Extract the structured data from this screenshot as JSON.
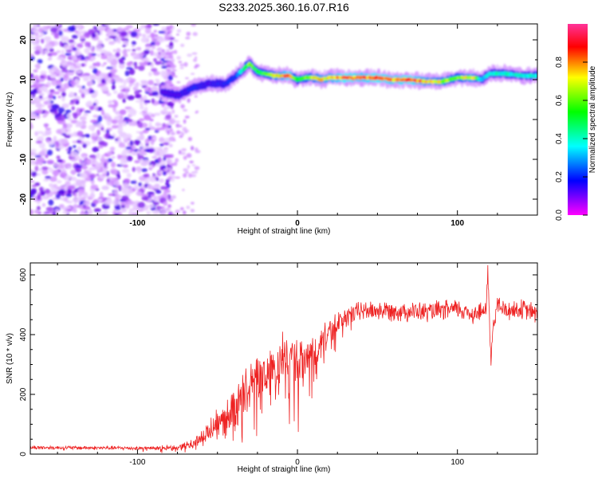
{
  "title": "S233.2025.360.16.07.R16",
  "chart_data": [
    {
      "type": "heatmap",
      "xlabel": "Height of straight line (km)",
      "ylabel": "Frequency (Hz)",
      "xlim": [
        -167,
        150
      ],
      "ylim": [
        -24,
        24
      ],
      "x_ticks": [
        -100,
        0,
        100
      ],
      "x_tick_labels": [
        "-100",
        "0",
        "100"
      ],
      "y_ticks": [
        -20,
        -10,
        0,
        10,
        20
      ],
      "y_tick_labels": [
        "-20",
        "-10",
        "0",
        "10",
        "20"
      ],
      "colorbar": {
        "label": "Normalized spectral amplitude",
        "range": [
          0,
          1
        ],
        "ticks": [
          0.0,
          0.2,
          0.4,
          0.6,
          0.8
        ],
        "tick_labels": [
          "0.0",
          "0.2",
          "0.4",
          "0.6",
          "0.8"
        ],
        "colormap": [
          "#ffffff",
          "#ff00ff",
          "#0000ff",
          "#00ffff",
          "#00ff00",
          "#ffff00",
          "#ff0000"
        ]
      },
      "noise_region_x": [
        -167,
        -82
      ],
      "ridge": {
        "x": [
          -85,
          -75,
          -65,
          -55,
          -45,
          -38,
          -33,
          -30,
          -25,
          -20,
          -15,
          -10,
          -5,
          0,
          5,
          10,
          15,
          20,
          30,
          40,
          50,
          60,
          70,
          80,
          90,
          100,
          110,
          115,
          120,
          130,
          140,
          150
        ],
        "freq": [
          7,
          6,
          8,
          9,
          9,
          11,
          13,
          14,
          12,
          11.5,
          11,
          11,
          11,
          10,
          10.5,
          10.5,
          10,
          10.5,
          10.5,
          10.5,
          10.5,
          10,
          10,
          9.5,
          9.5,
          10.5,
          10.5,
          10,
          11.5,
          11.5,
          11,
          11
        ],
        "amplitude": [
          0.3,
          0.3,
          0.35,
          0.3,
          0.35,
          0.4,
          0.6,
          0.7,
          0.6,
          0.65,
          0.75,
          0.8,
          0.9,
          0.6,
          0.7,
          0.75,
          0.8,
          0.8,
          0.9,
          0.85,
          0.9,
          0.85,
          0.9,
          0.8,
          0.75,
          0.7,
          0.8,
          0.5,
          0.55,
          0.55,
          0.55,
          0.55
        ]
      }
    },
    {
      "type": "line",
      "xlabel": "Height of straight line (km)",
      "ylabel": "SNR (10 * v/v)",
      "xlim": [
        -167,
        150
      ],
      "ylim": [
        0,
        640
      ],
      "x_ticks": [
        -100,
        0,
        100
      ],
      "x_tick_labels": [
        "-100",
        "0",
        "100"
      ],
      "y_ticks": [
        0,
        200,
        400,
        600
      ],
      "y_tick_labels": [
        "0",
        "200",
        "400",
        "600"
      ],
      "color": "#ee2222",
      "envelope": {
        "x": [
          -167,
          -100,
          -75,
          -65,
          -55,
          -45,
          -35,
          -25,
          -15,
          -5,
          0,
          10,
          20,
          30,
          40,
          60,
          80,
          100,
          110,
          118,
          119,
          120,
          121,
          122,
          125,
          130,
          140,
          150
        ],
        "y": [
          22,
          20,
          22,
          35,
          80,
          120,
          190,
          250,
          290,
          330,
          280,
          340,
          410,
          460,
          480,
          480,
          475,
          485,
          470,
          480,
          620,
          450,
          300,
          420,
          500,
          480,
          485,
          470
        ]
      },
      "noise_amplitude": [
        8,
        8,
        10,
        20,
        45,
        70,
        90,
        100,
        100,
        110,
        110,
        80,
        50,
        40,
        40,
        40,
        40,
        40,
        40,
        40,
        20,
        60,
        20,
        40,
        40,
        40,
        40,
        40
      ]
    }
  ]
}
